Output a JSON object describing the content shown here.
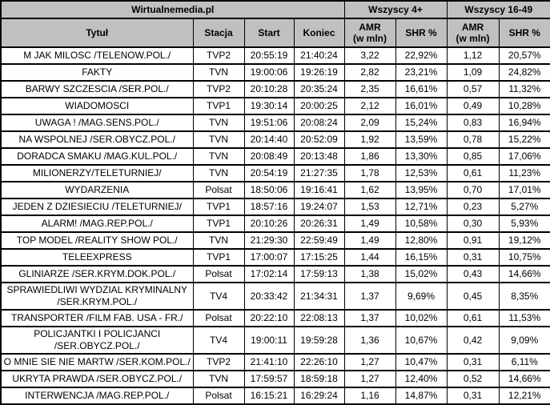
{
  "colors": {
    "header_bg": "#c0c0c0",
    "border": "#000000",
    "row_bg": "#ffffff",
    "text": "#000000"
  },
  "header": {
    "brand": "Wirtualnemedia.pl",
    "groups": [
      {
        "label": "Wszyscy 4+"
      },
      {
        "label": "Wszyscy 16-49"
      }
    ],
    "columns": {
      "title": "Tytuł",
      "station": "Stacja",
      "start": "Start",
      "end": "Koniec",
      "amr_line1": "AMR",
      "amr_line2": "(w mln)",
      "shr": "SHR %"
    }
  },
  "chart_data": {
    "type": "table",
    "title": "Wirtualnemedia.pl",
    "column_groups": [
      {
        "label": "Wszyscy 4+",
        "span_columns": [
          "AMR (w mln)",
          "SHR %"
        ]
      },
      {
        "label": "Wszyscy 16-49",
        "span_columns": [
          "AMR (w mln)",
          "SHR %"
        ]
      }
    ],
    "columns": [
      "Tytuł",
      "Stacja",
      "Start",
      "Koniec",
      "AMR (w mln)",
      "SHR %",
      "AMR (w mln)",
      "SHR %"
    ],
    "rows": [
      [
        "M JAK MILOSC /TELENOW.POL./",
        "TVP2",
        "20:55:19",
        "21:40:24",
        "3,22",
        "22,92%",
        "1,12",
        "20,57%"
      ],
      [
        "FAKTY",
        "TVN",
        "19:00:06",
        "19:26:19",
        "2,82",
        "23,21%",
        "1,09",
        "24,82%"
      ],
      [
        "BARWY SZCZESCIA /SER.POL./",
        "TVP2",
        "20:10:28",
        "20:35:24",
        "2,35",
        "16,61%",
        "0,57",
        "11,32%"
      ],
      [
        "WIADOMOSCI",
        "TVP1",
        "19:30:14",
        "20:00:25",
        "2,12",
        "16,01%",
        "0,49",
        "10,28%"
      ],
      [
        "UWAGA ! /MAG.SENS.POL./",
        "TVN",
        "19:51:06",
        "20:08:24",
        "2,09",
        "15,24%",
        "0,83",
        "16,94%"
      ],
      [
        "NA WSPOLNEJ /SER.OBYCZ.POL./",
        "TVN",
        "20:14:40",
        "20:52:09",
        "1,92",
        "13,59%",
        "0,78",
        "15,22%"
      ],
      [
        "DORADCA SMAKU /MAG.KUL.POL./",
        "TVN",
        "20:08:49",
        "20:13:48",
        "1,86",
        "13,30%",
        "0,85",
        "17,06%"
      ],
      [
        "MILIONERZY/TELETURNIEJ/",
        "TVN",
        "20:54:19",
        "21:27:35",
        "1,78",
        "12,53%",
        "0,61",
        "11,23%"
      ],
      [
        "WYDARZENIA",
        "Polsat",
        "18:50:06",
        "19:16:41",
        "1,62",
        "13,95%",
        "0,70",
        "17,01%"
      ],
      [
        "JEDEN Z DZIESIECIU /TELETURNIEJ/",
        "TVP1",
        "18:57:16",
        "19:24:07",
        "1,53",
        "12,71%",
        "0,23",
        "5,27%"
      ],
      [
        "ALARM! /MAG.REP.POL./",
        "TVP1",
        "20:10:26",
        "20:26:31",
        "1,49",
        "10,58%",
        "0,30",
        "5,93%"
      ],
      [
        "TOP MODEL /REALITY SHOW POL./",
        "TVN",
        "21:29:30",
        "22:59:49",
        "1,49",
        "12,80%",
        "0,91",
        "19,12%"
      ],
      [
        "TELEEXPRESS",
        "TVP1",
        "17:00:07",
        "17:15:25",
        "1,44",
        "16,15%",
        "0,31",
        "10,75%"
      ],
      [
        "GLINIARZE /SER.KRYM.DOK.POL./",
        "Polsat",
        "17:02:14",
        "17:59:13",
        "1,38",
        "15,02%",
        "0,43",
        "14,66%"
      ],
      [
        "SPRAWIEDLIWI WYDZIAL KRYMINALNY /SER.KRYM.POL./",
        "TV4",
        "20:33:42",
        "21:34:31",
        "1,37",
        "9,69%",
        "0,45",
        "8,35%"
      ],
      [
        "TRANSPORTER /FILM FAB. USA - FR./",
        "Polsat",
        "20:22:10",
        "22:08:13",
        "1,37",
        "10,02%",
        "0,61",
        "11,53%"
      ],
      [
        "POLICJANTKI I POLICJANCI /SER.OBYCZ.POL./",
        "TV4",
        "19:00:11",
        "19:59:28",
        "1,36",
        "10,67%",
        "0,42",
        "9,09%"
      ],
      [
        "O MNIE SIE NIE MARTW /SER.KOM.POL./",
        "TVP2",
        "21:41:10",
        "22:26:10",
        "1,27",
        "10,47%",
        "0,31",
        "6,11%"
      ],
      [
        "UKRYTA PRAWDA /SER.OBYCZ.POL./",
        "TVN",
        "17:59:57",
        "18:59:18",
        "1,27",
        "12,40%",
        "0,52",
        "14,66%"
      ],
      [
        "INTERWENCJA /MAG.REP.POL./",
        "Polsat",
        "16:15:21",
        "16:29:24",
        "1,16",
        "14,87%",
        "0,31",
        "12,21%"
      ]
    ]
  }
}
